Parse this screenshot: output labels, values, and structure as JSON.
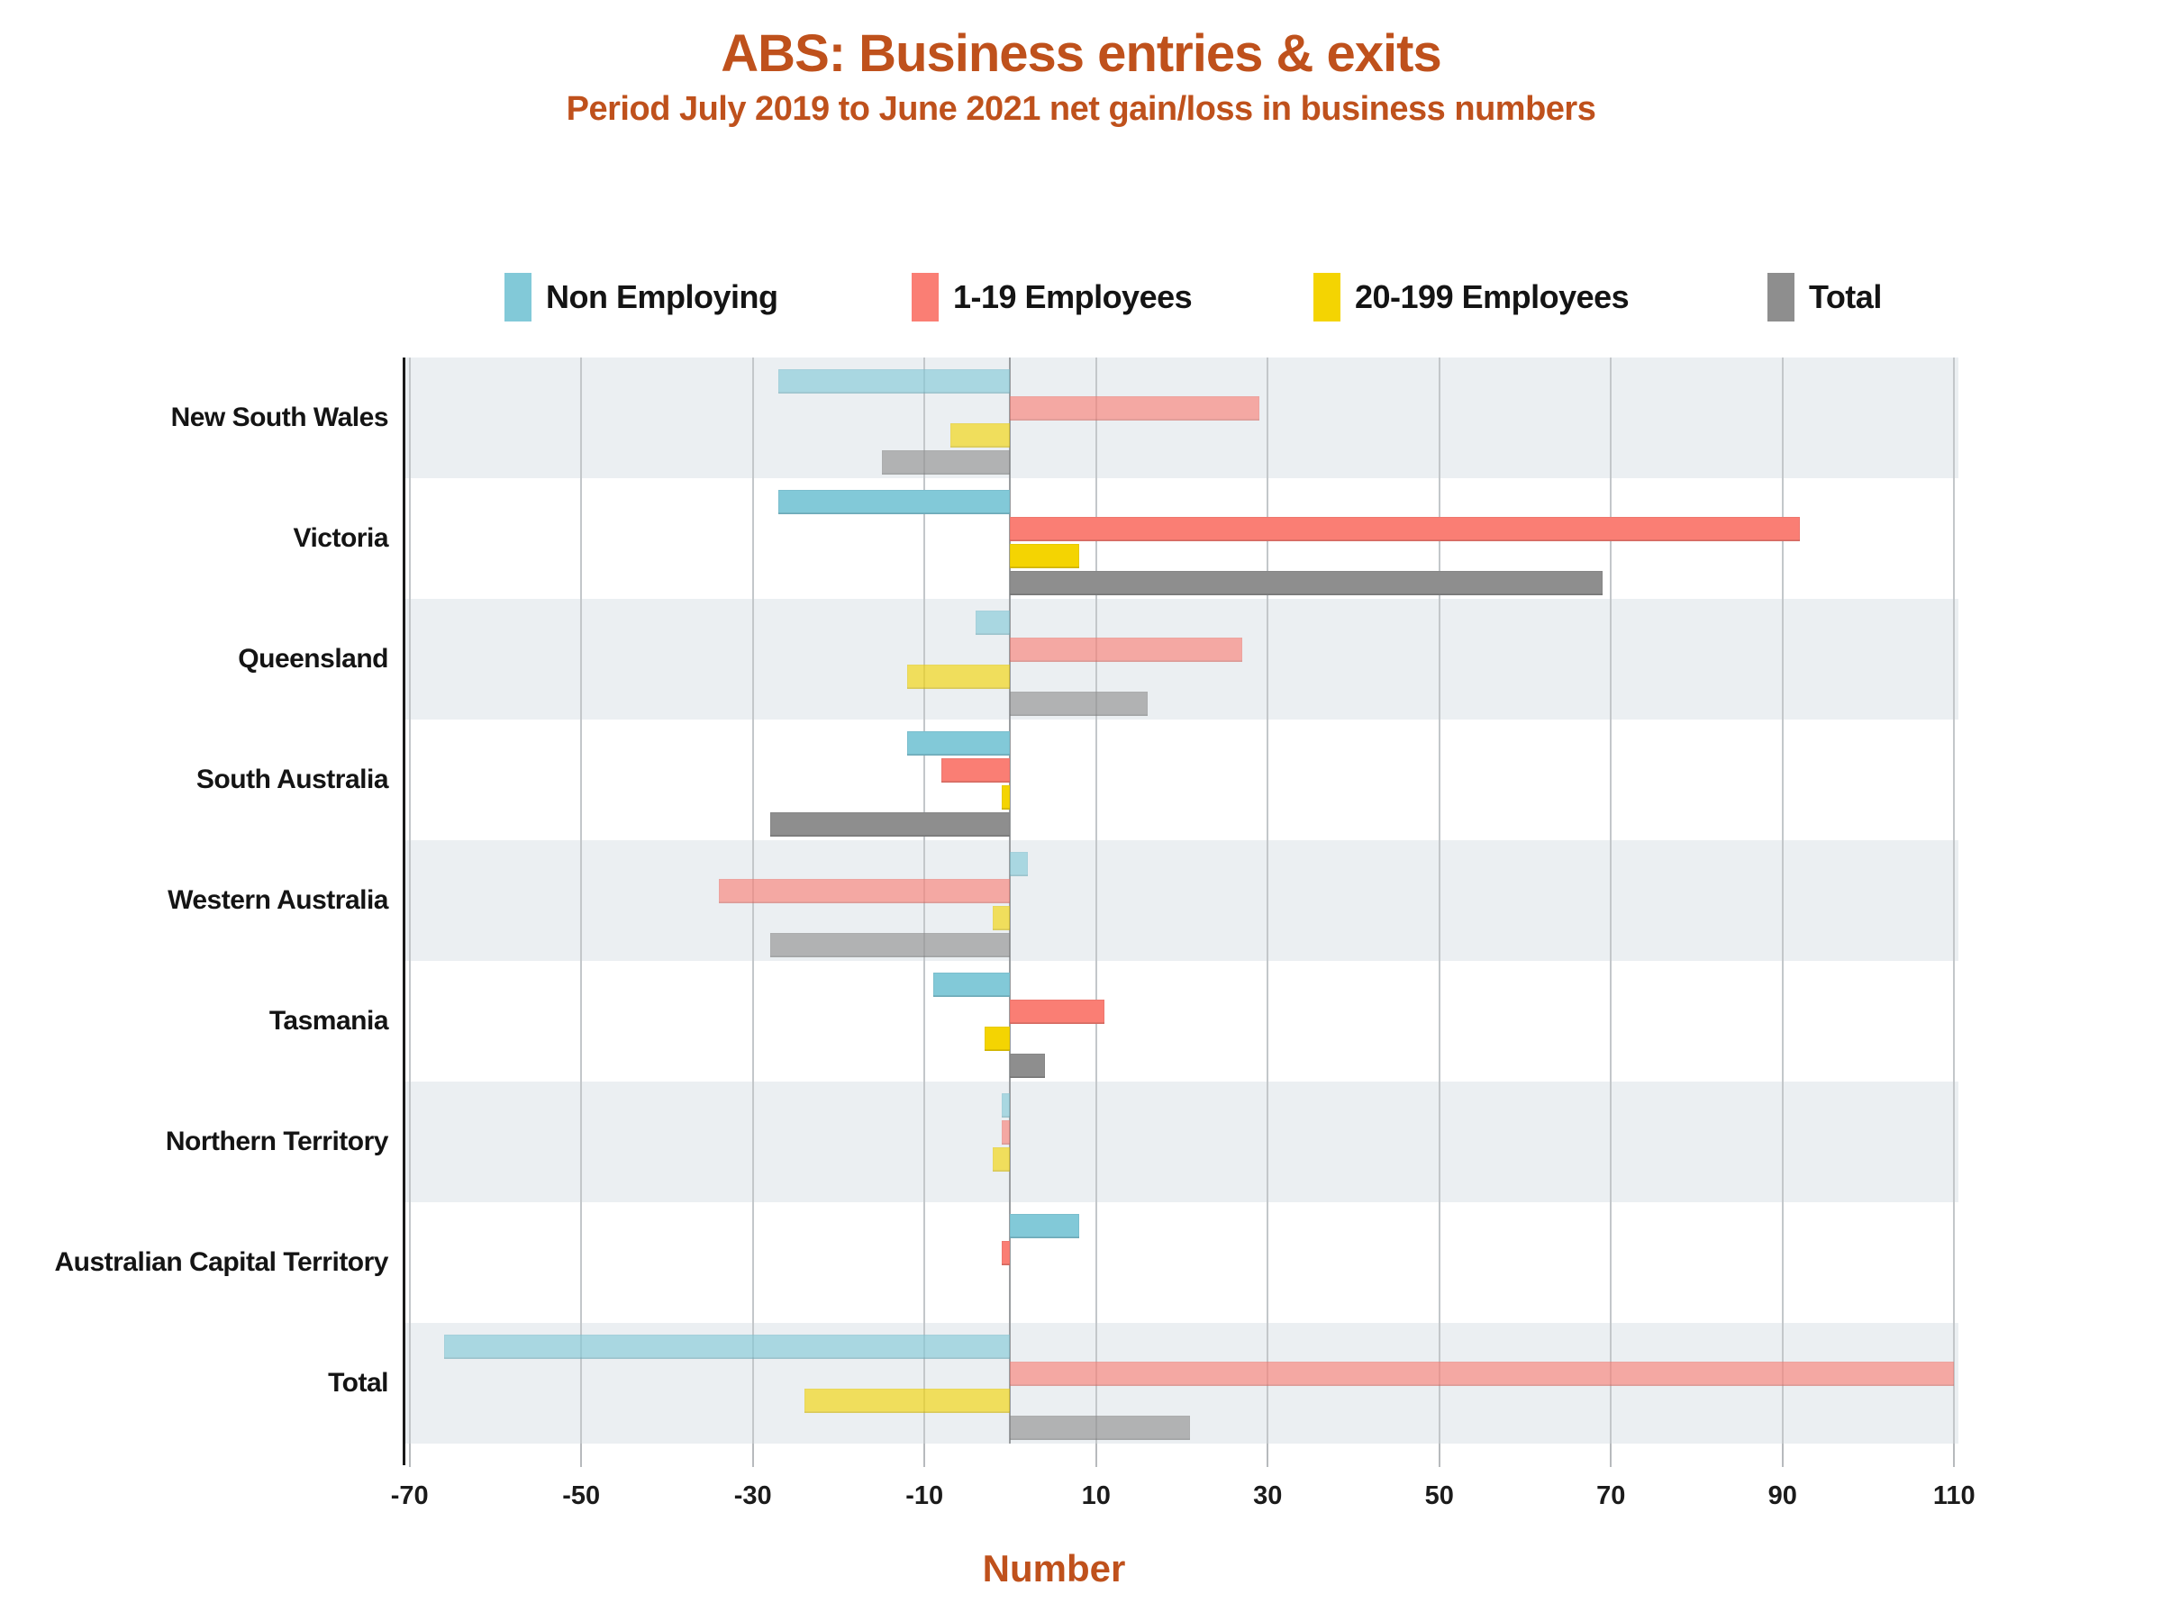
{
  "title": "ABS: Business entries & exits",
  "subtitle": "Period July 2019 to June 2021 net gain/loss in business numbers",
  "x_axis_title": "Number",
  "colors": {
    "title_text": "#bf511c",
    "band": "#ebeff2",
    "gridline": "#c3c7ca",
    "zero_line": "#9a9da0",
    "axis": "#1a1a1a",
    "non_employing": "#82c9d8",
    "employees_1_19": "#fa7e74",
    "employees_20_199": "#f4d402",
    "total": "#8e8e8e"
  },
  "legend": {
    "items": [
      {
        "label": "Non Employing",
        "color": "#82c9d8",
        "x": 560
      },
      {
        "label": "1-19 Employees",
        "color": "#fa7e74",
        "x": 1012
      },
      {
        "label": "20-199 Employees",
        "color": "#f4d402",
        "x": 1458
      },
      {
        "label": "Total",
        "color": "#8e8e8e",
        "x": 1962
      }
    ]
  },
  "chart_data": {
    "type": "bar",
    "orientation": "horizontal",
    "title": "ABS: Business entries & exits",
    "subtitle": "Period July 2019 to June 2021 net gain/loss in business numbers",
    "xlabel": "Number",
    "grid": true,
    "legend_position": "top",
    "categories": [
      "New South Wales",
      "Victoria",
      "Queensland",
      "South Australia",
      "Western Australia",
      "Tasmania",
      "Northern Territory",
      "Australian Capital Territory",
      "Total"
    ],
    "series": [
      {
        "name": "Non Employing",
        "color": "#82c9d8",
        "values": [
          -27,
          -27,
          -4,
          -12,
          2,
          -9,
          -1,
          8,
          -66
        ]
      },
      {
        "name": "1-19 Employees",
        "color": "#fa7e74",
        "values": [
          29,
          92,
          27,
          -8,
          -34,
          11,
          -1,
          -1,
          110
        ]
      },
      {
        "name": "20-199 Employees",
        "color": "#f4d402",
        "values": [
          -7,
          8,
          -12,
          -1,
          -2,
          -3,
          -2,
          0,
          -24
        ]
      },
      {
        "name": "Total",
        "color": "#8e8e8e",
        "values": [
          -15,
          69,
          16,
          -28,
          -28,
          4,
          0,
          0,
          21
        ]
      }
    ],
    "xticks": [
      -70,
      -50,
      -30,
      -10,
      10,
      30,
      50,
      70,
      90,
      110
    ],
    "xmin": -70.6,
    "xmax": 110.5,
    "shaded_rows": [
      0,
      2,
      4,
      6,
      8
    ]
  }
}
